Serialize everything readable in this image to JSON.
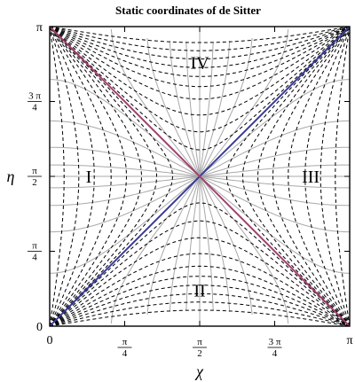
{
  "diagram": {
    "title": "Static coordinates of de Sitter",
    "x_axis": {
      "label": "χ",
      "ticks": [
        {
          "value": 0,
          "num": "",
          "den": "",
          "text": "0"
        },
        {
          "value": 0.25,
          "num": "π",
          "den": "4",
          "text": ""
        },
        {
          "value": 0.5,
          "num": "π",
          "den": "2",
          "text": ""
        },
        {
          "value": 0.75,
          "num": "3 π",
          "den": "4",
          "text": ""
        },
        {
          "value": 1,
          "num": "",
          "den": "",
          "text": "π"
        }
      ]
    },
    "y_axis": {
      "label": "η",
      "ticks": [
        {
          "value": 0,
          "num": "",
          "den": "",
          "text": "0"
        },
        {
          "value": 0.25,
          "num": "π",
          "den": "4",
          "text": ""
        },
        {
          "value": 0.5,
          "num": "π",
          "den": "2",
          "text": ""
        },
        {
          "value": 0.75,
          "num": "3 π",
          "den": "4",
          "text": ""
        },
        {
          "value": 1,
          "num": "",
          "den": "",
          "text": "π"
        }
      ]
    },
    "regions": [
      {
        "label": "I",
        "x": 0.13,
        "y": 0.5
      },
      {
        "label": "II",
        "x": 0.5,
        "y": 0.12
      },
      {
        "label": "III",
        "x": 0.87,
        "y": 0.5
      },
      {
        "label": "IV",
        "x": 0.5,
        "y": 0.88
      }
    ],
    "colors": {
      "frame": "#000000",
      "dashed_curves": "#000000",
      "gray_curves": "#a8a8a8",
      "diagonal_blue": "#3a3a9a",
      "diagonal_magenta": "#a0406c"
    }
  }
}
